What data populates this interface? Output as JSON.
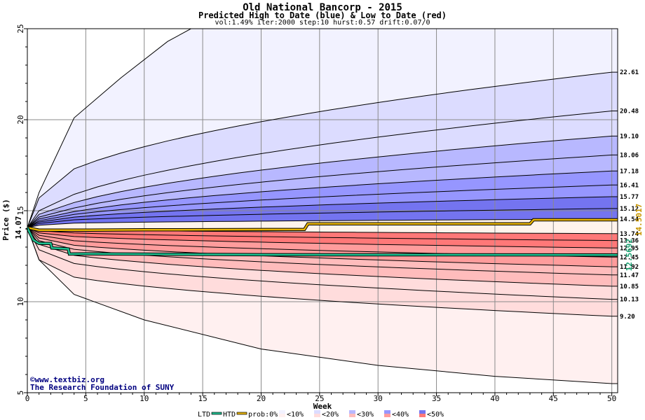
{
  "chart_data": {
    "type": "area",
    "title": "Old National Bancorp - 2015",
    "subtitle": "Predicted High to Date (blue) &  Low to Date (red)",
    "params": "vol:1.49% iter:2000 step:10 hurst:0.57 drift:0.07/0",
    "xlabel": "Week",
    "ylabel": "Price ($)",
    "xlim": [
      0,
      50.5
    ],
    "ylim": [
      5,
      25
    ],
    "xticks": [
      0,
      5,
      10,
      15,
      20,
      25,
      30,
      35,
      40,
      45,
      50
    ],
    "yticks": [
      5,
      10,
      15,
      20,
      25
    ],
    "grid": true,
    "start_price": 14.07,
    "start_price_label": "14.07",
    "legend_position": "bottom",
    "legend": {
      "ltd_label": "LTD",
      "htd_label": "HTD",
      "prob_label": "prob:0%",
      "ranges": [
        "<10%",
        "<20%",
        "<30%",
        "<40%",
        "<50%"
      ],
      "blue_colors": [
        "#f2f2ff",
        "#dcdcff",
        "#b8b8ff",
        "#9696ff",
        "#7474f0"
      ],
      "red_colors": [
        "#fff0f0",
        "#ffdcdc",
        "#ffbcbc",
        "#ff9c9c",
        "#ff7878"
      ]
    },
    "credit": {
      "copyright_symbol": "©",
      "site": "www.textbiz.org",
      "org": "The Research Foundation of SUNY"
    },
    "high_to_date_quantiles": [
      {
        "end_label": "22.61",
        "end_value": 22.61,
        "w1": 15.7,
        "w4": 17.3
      },
      {
        "end_label": "20.48",
        "end_value": 20.48,
        "w1": 15.0,
        "w4": 15.9
      },
      {
        "end_label": "19.10",
        "end_value": 19.1,
        "w1": 14.8,
        "w4": 15.45
      },
      {
        "end_label": "18.06",
        "end_value": 18.06,
        "w1": 14.65,
        "w4": 15.15
      },
      {
        "end_label": "17.18",
        "end_value": 17.18,
        "w1": 14.55,
        "w4": 14.95
      },
      {
        "end_label": "16.41",
        "end_value": 16.41,
        "w1": 14.45,
        "w4": 14.8
      },
      {
        "end_label": "15.77",
        "end_value": 15.77,
        "w1": 14.38,
        "w4": 14.65
      },
      {
        "end_label": "15.12",
        "end_value": 15.12,
        "w1": 14.3,
        "w4": 14.5
      },
      {
        "end_label": "14.54",
        "end_value": 14.54,
        "w1": 14.2,
        "w4": 14.32
      }
    ],
    "low_to_date_quantiles": [
      {
        "end_label": "13.74",
        "end_value": 13.74,
        "w1": 14.0,
        "w4": 13.95
      },
      {
        "end_label": "13.36",
        "end_value": 13.36,
        "w1": 13.9,
        "w4": 13.78
      },
      {
        "end_label": "12.95",
        "end_value": 12.95,
        "w1": 13.78,
        "w4": 13.58
      },
      {
        "end_label": "12.45",
        "end_value": 12.45,
        "w1": 13.65,
        "w4": 13.35
      },
      {
        "end_label": "11.92",
        "end_value": 11.92,
        "w1": 13.5,
        "w4": 13.1
      },
      {
        "end_label": "11.47",
        "end_value": 11.47,
        "w1": 13.35,
        "w4": 12.88
      },
      {
        "end_label": "10.85",
        "end_value": 10.85,
        "w1": 13.15,
        "w4": 12.55
      },
      {
        "end_label": "10.13",
        "end_value": 10.13,
        "w1": 12.85,
        "w4": 12.1
      },
      {
        "end_label": "9.20",
        "end_value": 9.2,
        "w1": 12.3,
        "w4": 11.35
      }
    ],
    "outer_high_envelope": {
      "w1": 16.0,
      "w4": 20.1,
      "w8": 22.3,
      "w12": 24.3,
      "w14": 25.0
    },
    "outer_low_envelope": {
      "w1": 12.3,
      "w4": 10.4,
      "w10": 9.0,
      "w20": 7.4,
      "w30": 6.5,
      "w40": 5.9,
      "w50": 5.5
    },
    "htd_line": {
      "color": "#e8b400",
      "label": "14.5017",
      "end_value": 14.5017,
      "points": [
        [
          0,
          14.07
        ],
        [
          1,
          13.93
        ],
        [
          5,
          13.93
        ],
        [
          10,
          13.95
        ],
        [
          23.7,
          13.97
        ],
        [
          24,
          14.28
        ],
        [
          43,
          14.28
        ],
        [
          43.3,
          14.5
        ],
        [
          50.5,
          14.5017
        ]
      ]
    },
    "ltd_line": {
      "color": "#1ec090",
      "label": "12.5692",
      "end_value": 12.5692,
      "points": [
        [
          0,
          14.07
        ],
        [
          0.5,
          13.4
        ],
        [
          1,
          13.2
        ],
        [
          2,
          13.2
        ],
        [
          2.1,
          12.95
        ],
        [
          3.5,
          12.9
        ],
        [
          3.6,
          12.62
        ],
        [
          5,
          12.63
        ],
        [
          20,
          12.58
        ],
        [
          50.5,
          12.5692
        ]
      ]
    }
  }
}
